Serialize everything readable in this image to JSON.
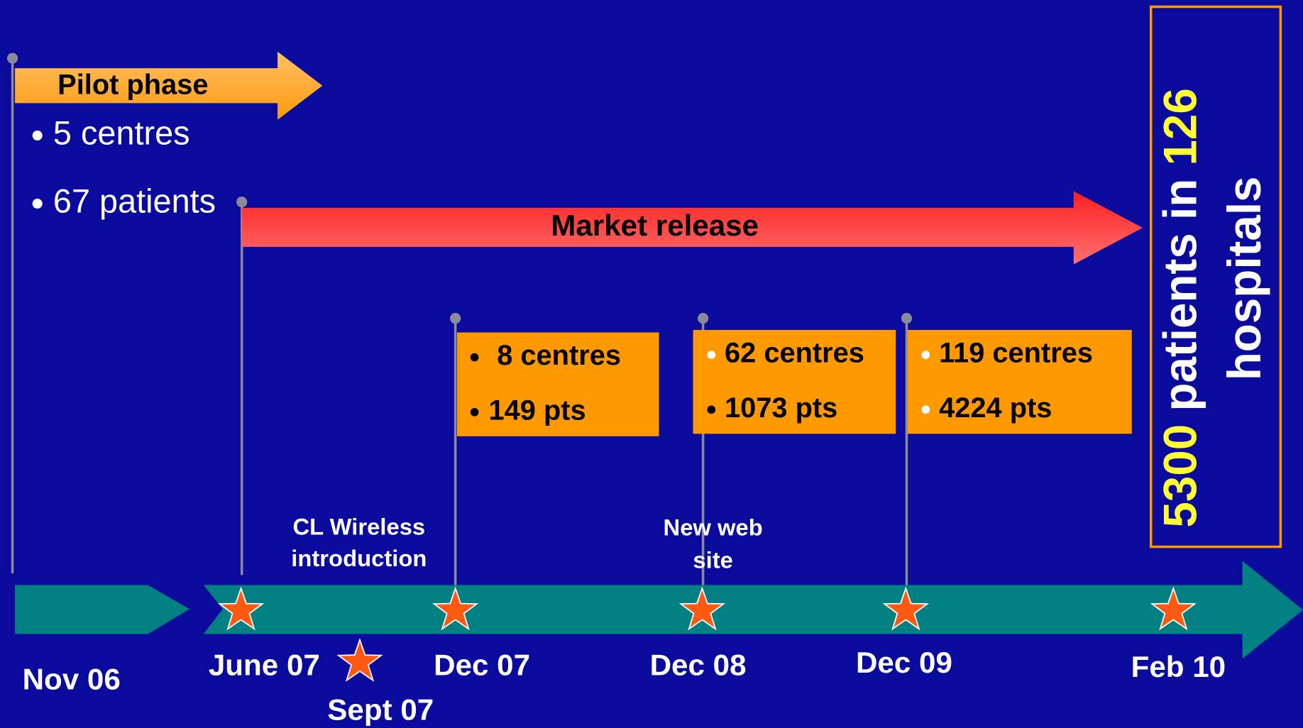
{
  "pilot": {
    "label": "Pilot phase",
    "bullets": [
      "5 centres",
      "67 patients"
    ]
  },
  "market": {
    "label": "Market release"
  },
  "boxes": [
    {
      "lines": [
        "8 centres",
        "149 pts"
      ]
    },
    {
      "lines": [
        "62 centres",
        "1073 pts"
      ]
    },
    {
      "lines": [
        "119 centres",
        "4224 pts"
      ]
    }
  ],
  "milestones": [
    {
      "lines": [
        "CL Wireless",
        "introduction"
      ]
    },
    {
      "lines": [
        "New web",
        "site"
      ]
    }
  ],
  "dates": [
    "Nov 06",
    "June 07",
    "Sept 07",
    "Dec 07",
    "Dec 08",
    "Dec 09",
    "Feb 10"
  ],
  "summary": {
    "patients": "5300",
    "text": " patients in ",
    "hospitals": "126",
    "line2": "hospitals"
  }
}
